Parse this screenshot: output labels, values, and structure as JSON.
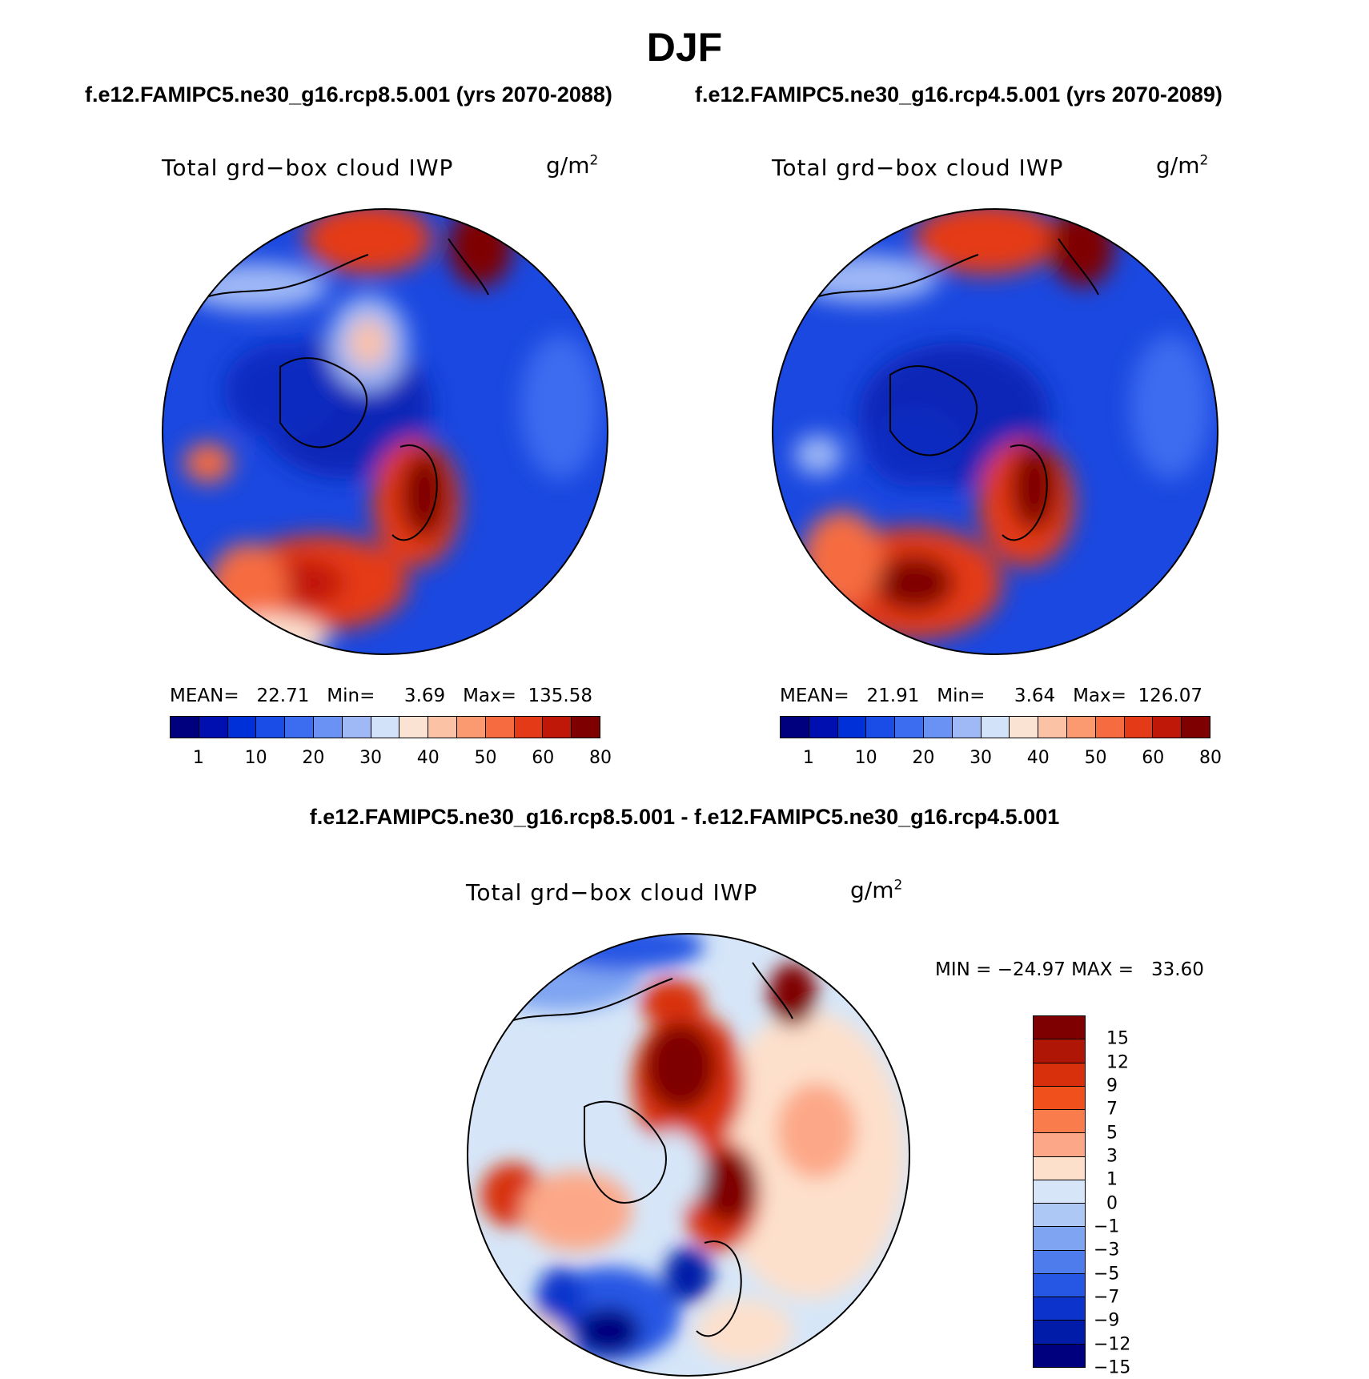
{
  "title": "DJF",
  "panels": [
    {
      "subtitle": "f.e12.FAMIPC5.ne30_g16.rcp8.5.001 (yrs 2070-2088)",
      "variable": "Total grd−box cloud IWP",
      "units": "g/m",
      "units_exp": "2",
      "stats": "MEAN=   22.71   Min=     3.69   Max=  135.58",
      "colorbar": {
        "colors": [
          "#00007f",
          "#0010b0",
          "#0030d8",
          "#1a4de8",
          "#3c6cf0",
          "#6a92f4",
          "#9fb8f6",
          "#d2e2f8",
          "#fbe3d3",
          "#fcc2a6",
          "#fb9a70",
          "#f66c40",
          "#e53a18",
          "#c01808",
          "#7f0000"
        ],
        "labels": [
          "1",
          "10",
          "20",
          "30",
          "40",
          "50",
          "60",
          "80"
        ]
      }
    },
    {
      "subtitle": "f.e12.FAMIPC5.ne30_g16.rcp4.5.001 (yrs 2070-2089)",
      "variable": "Total grd−box cloud IWP",
      "units": "g/m",
      "units_exp": "2",
      "stats": "MEAN=   21.91   Min=     3.64   Max=  126.07",
      "colorbar": {
        "colors": [
          "#00007f",
          "#0010b0",
          "#0030d8",
          "#1a4de8",
          "#3c6cf0",
          "#6a92f4",
          "#9fb8f6",
          "#d2e2f8",
          "#fbe3d3",
          "#fcc2a6",
          "#fb9a70",
          "#f66c40",
          "#e53a18",
          "#c01808",
          "#7f0000"
        ],
        "labels": [
          "1",
          "10",
          "20",
          "30",
          "40",
          "50",
          "60",
          "80"
        ]
      }
    }
  ],
  "difference": {
    "title": "f.e12.FAMIPC5.ne30_g16.rcp8.5.001 - f.e12.FAMIPC5.ne30_g16.rcp4.5.001",
    "variable": "Total grd−box cloud IWP",
    "units": "g/m",
    "units_exp": "2",
    "stats": "MIN = −24.97 MAX =   33.60",
    "colorbar": {
      "colors": [
        "#7f0000",
        "#b01606",
        "#d8300c",
        "#f0501c",
        "#f97c4c",
        "#fca888",
        "#fde0cc",
        "#d6e6f8",
        "#aec8f6",
        "#7ea4f2",
        "#4e7cec",
        "#2656e4",
        "#0c34cc",
        "#001ca8",
        "#00007f"
      ],
      "labels": [
        "15",
        "12",
        "9",
        "7",
        "5",
        "3",
        "1",
        "0",
        "−1",
        "−3",
        "−5",
        "−7",
        "−9",
        "−12",
        "−15"
      ]
    }
  },
  "colors": {
    "map_background": "#1a48e0",
    "coastline": "#000000"
  }
}
